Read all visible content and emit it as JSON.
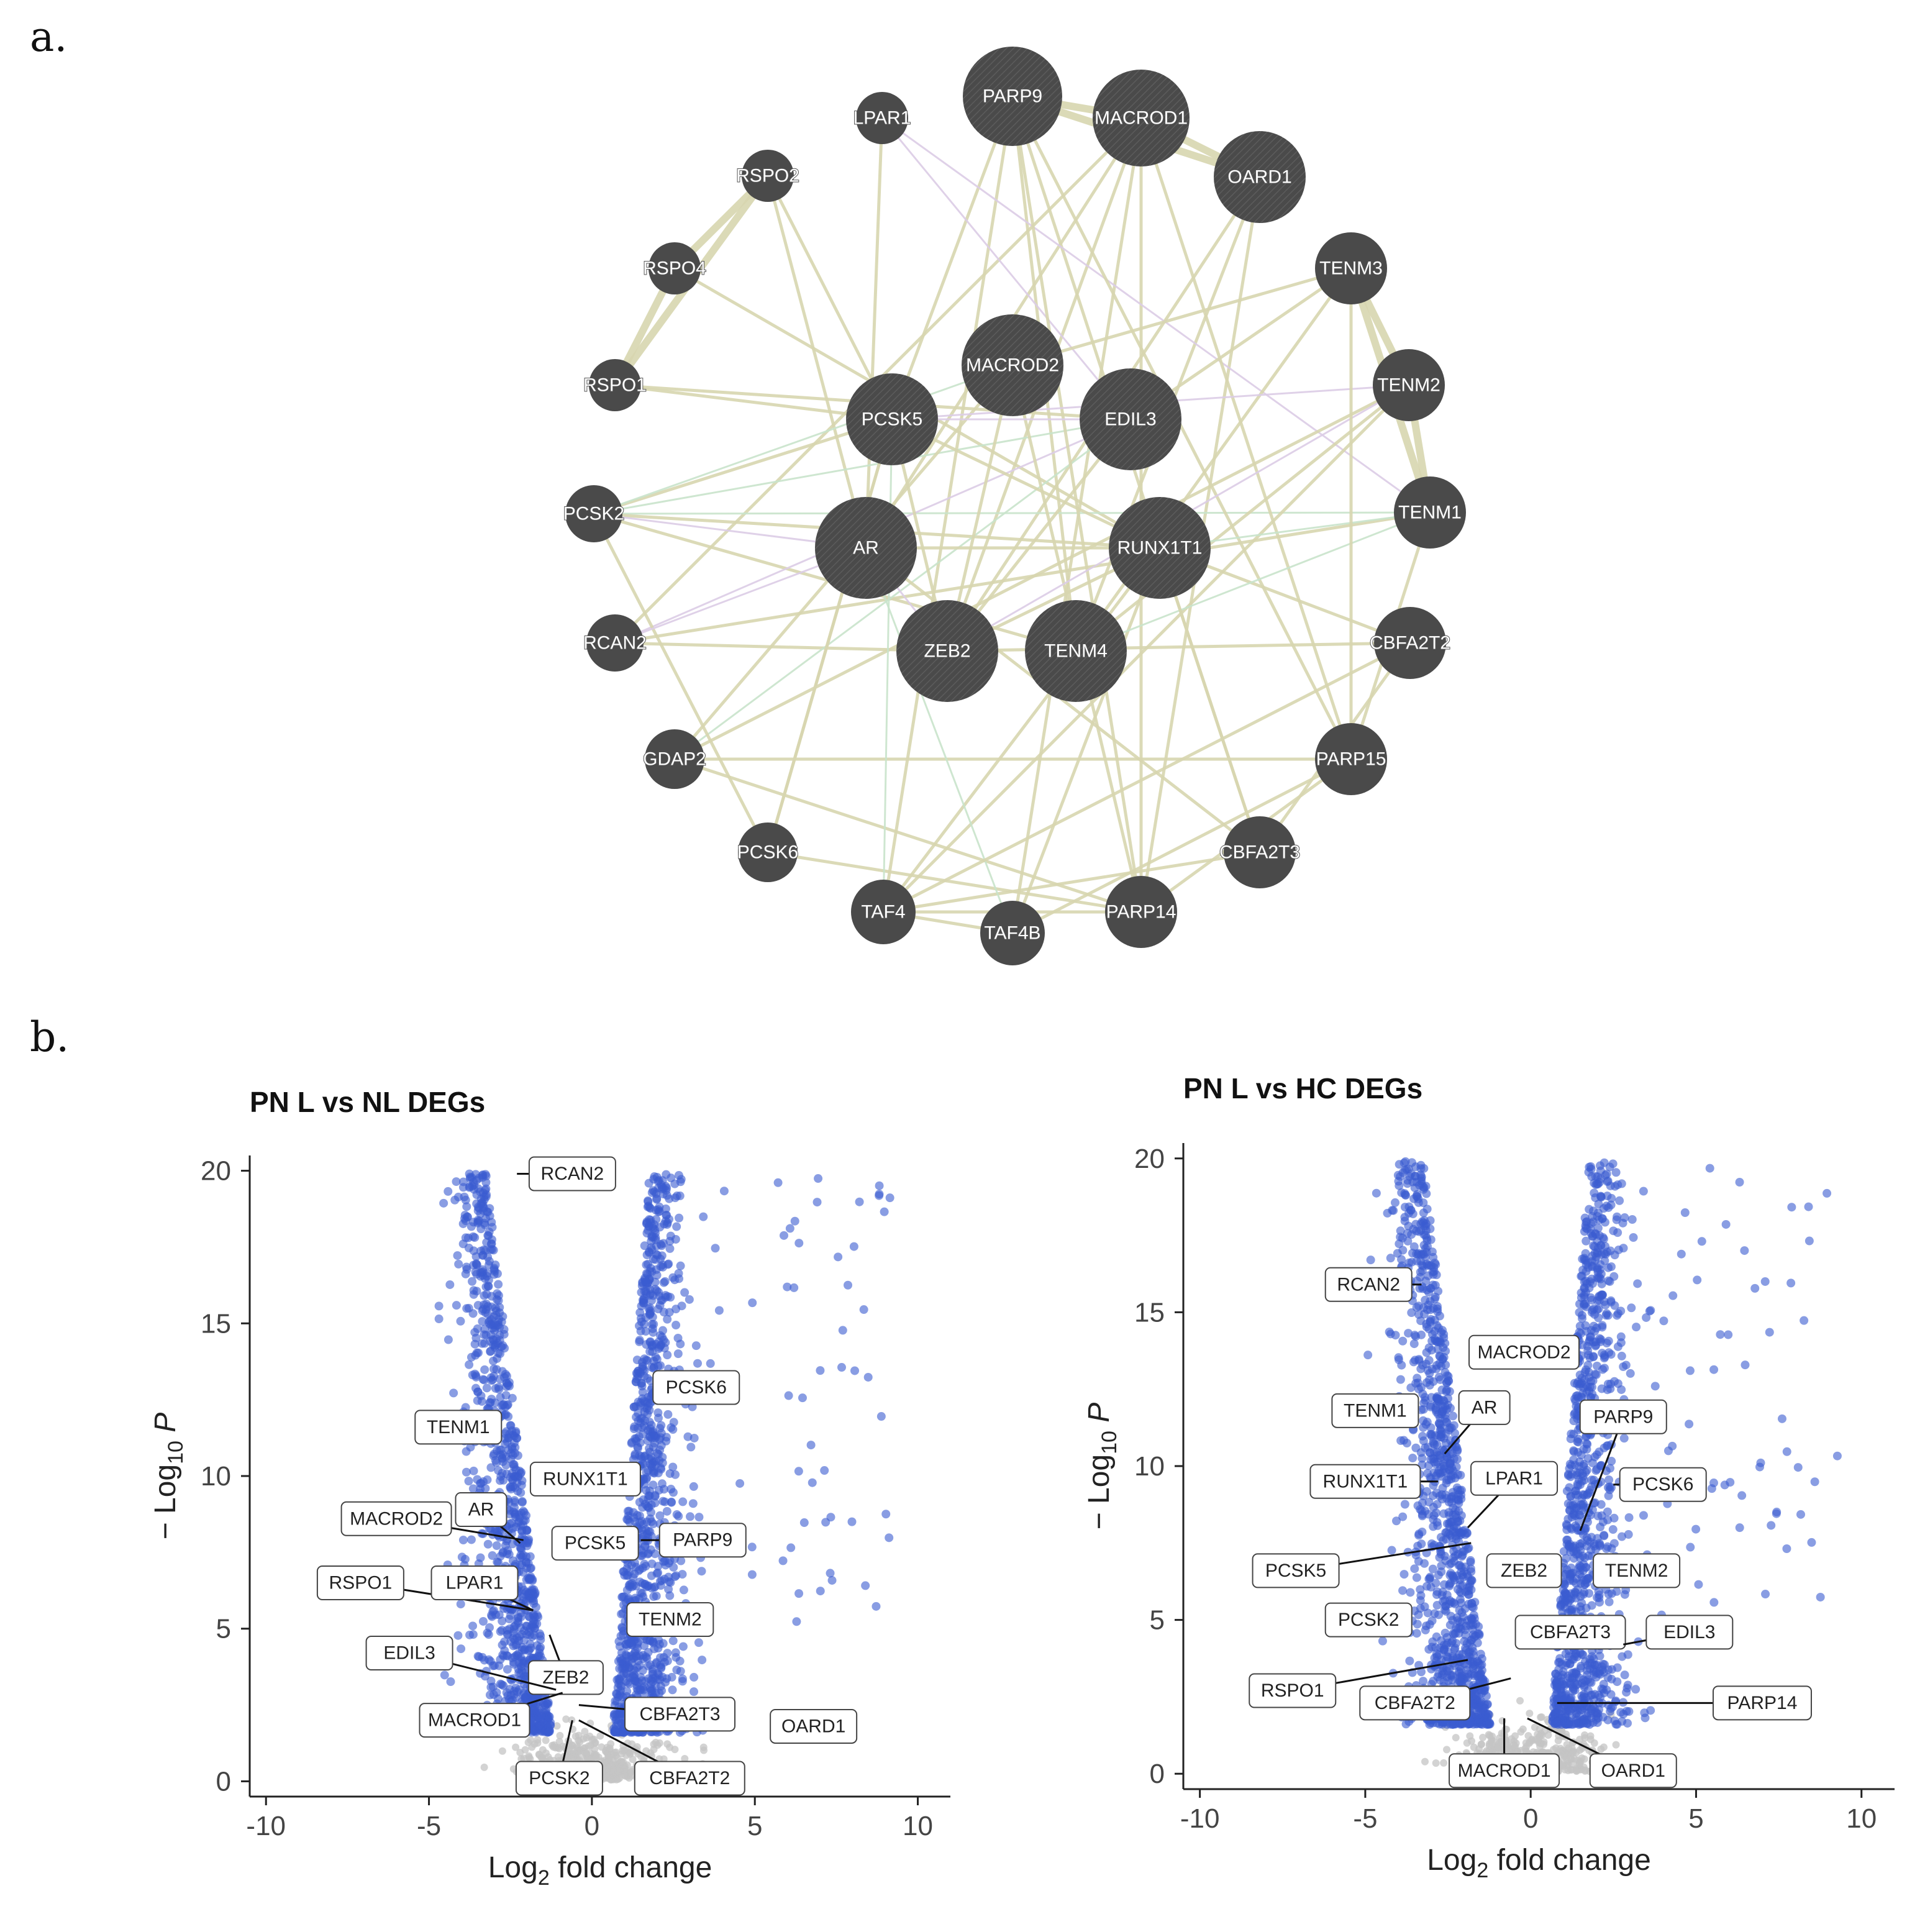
{
  "panel_labels": [
    "a.",
    "b."
  ],
  "colors": {
    "node": "#4a4a4a",
    "edge_coexpression": "#d8d6b0",
    "edge_physical": "#dccde6",
    "edge_genetic": "#c9e4cc",
    "significant_point": "#3a5bd0",
    "nonsignificant_point": "#c4c4c4"
  },
  "network": {
    "nodes": [
      {
        "id": "PARP9",
        "type": "query"
      },
      {
        "id": "MACROD1",
        "type": "query"
      },
      {
        "id": "OARD1",
        "type": "query"
      },
      {
        "id": "LPAR1",
        "type": "related"
      },
      {
        "id": "RSPO2",
        "type": "related"
      },
      {
        "id": "RSPO4",
        "type": "related"
      },
      {
        "id": "RSPO1",
        "type": "related"
      },
      {
        "id": "TENM3",
        "type": "related"
      },
      {
        "id": "TENM2",
        "type": "related"
      },
      {
        "id": "TENM1",
        "type": "related"
      },
      {
        "id": "PCSK2",
        "type": "related"
      },
      {
        "id": "RCAN2",
        "type": "related"
      },
      {
        "id": "CBFA2T2",
        "type": "related"
      },
      {
        "id": "GDAP2",
        "type": "related"
      },
      {
        "id": "PARP15",
        "type": "related"
      },
      {
        "id": "PCSK6",
        "type": "related"
      },
      {
        "id": "CBFA2T3",
        "type": "related"
      },
      {
        "id": "TAF4",
        "type": "related"
      },
      {
        "id": "TAF4B",
        "type": "related"
      },
      {
        "id": "PARP14",
        "type": "related"
      },
      {
        "id": "MACROD2",
        "type": "query"
      },
      {
        "id": "PCSK5",
        "type": "query"
      },
      {
        "id": "EDIL3",
        "type": "query"
      },
      {
        "id": "AR",
        "type": "query"
      },
      {
        "id": "RUNX1T1",
        "type": "query"
      },
      {
        "id": "ZEB2",
        "type": "query"
      },
      {
        "id": "TENM4",
        "type": "query"
      }
    ],
    "edges": [
      [
        "RSPO2",
        "RSPO1",
        "co"
      ],
      [
        "RSPO2",
        "RSPO4",
        "co"
      ],
      [
        "RSPO4",
        "RSPO1",
        "co"
      ],
      [
        "TENM3",
        "TENM2",
        "co"
      ],
      [
        "TENM2",
        "TENM1",
        "co"
      ],
      [
        "TENM3",
        "TENM1",
        "co"
      ],
      [
        "PARP9",
        "MACROD1",
        "co"
      ],
      [
        "MACROD1",
        "OARD1",
        "co"
      ],
      [
        "PARP9",
        "OARD1",
        "co"
      ],
      [
        "PARP9",
        "PCSK5",
        "co"
      ],
      [
        "PARP9",
        "TENM4",
        "co"
      ],
      [
        "PARP9",
        "RUNX1T1",
        "co"
      ],
      [
        "PARP9",
        "TAF4",
        "co"
      ],
      [
        "MACROD1",
        "ZEB2",
        "co"
      ],
      [
        "MACROD1",
        "AR",
        "co"
      ],
      [
        "MACROD1",
        "PARP14",
        "co"
      ],
      [
        "MACROD1",
        "TAF4B",
        "co"
      ],
      [
        "MACROD1",
        "RCAN2",
        "co"
      ],
      [
        "OARD1",
        "ZEB2",
        "co"
      ],
      [
        "OARD1",
        "PARP14",
        "co"
      ],
      [
        "OARD1",
        "TENM4",
        "co"
      ],
      [
        "LPAR1",
        "EDIL3",
        "phys"
      ],
      [
        "LPAR1",
        "AR",
        "co"
      ],
      [
        "LPAR1",
        "TENM1",
        "phys"
      ],
      [
        "RSPO2",
        "AR",
        "co"
      ],
      [
        "RSPO2",
        "PCSK5",
        "co"
      ],
      [
        "RSPO4",
        "RUNX1T1",
        "co"
      ],
      [
        "RSPO1",
        "PCSK5",
        "co"
      ],
      [
        "RSPO1",
        "EDIL3",
        "co"
      ],
      [
        "PCSK2",
        "TENM1",
        "gen"
      ],
      [
        "PCSK2",
        "RUNX1T1",
        "co"
      ],
      [
        "PCSK2",
        "PCSK5",
        "co"
      ],
      [
        "PCSK2",
        "TENM4",
        "co"
      ],
      [
        "PCSK2",
        "EDIL3",
        "gen"
      ],
      [
        "RCAN2",
        "ZEB2",
        "co"
      ],
      [
        "RCAN2",
        "EDIL3",
        "phys"
      ],
      [
        "RCAN2",
        "TENM1",
        "co"
      ],
      [
        "GDAP2",
        "PARP15",
        "co"
      ],
      [
        "GDAP2",
        "TENM2",
        "co"
      ],
      [
        "GDAP2",
        "MACROD2",
        "co"
      ],
      [
        "GDAP2",
        "EDIL3",
        "gen"
      ],
      [
        "GDAP2",
        "PARP14",
        "co"
      ],
      [
        "PCSK6",
        "PCSK2",
        "co"
      ],
      [
        "PCSK6",
        "PCSK5",
        "co"
      ],
      [
        "PCSK6",
        "PARP14",
        "co"
      ],
      [
        "TAF4",
        "TAF4B",
        "co"
      ],
      [
        "TAF4",
        "PARP14",
        "co"
      ],
      [
        "TAF4",
        "TENM2",
        "co"
      ],
      [
        "TAF4",
        "CBFA2T3",
        "co"
      ],
      [
        "TAF4",
        "RUNX1T1",
        "co"
      ],
      [
        "TAF4B",
        "PARP15",
        "co"
      ],
      [
        "TAF4B",
        "RUNX1T1",
        "co"
      ],
      [
        "TAF4B",
        "AR",
        "gen"
      ],
      [
        "PARP14",
        "PARP15",
        "co"
      ],
      [
        "PARP14",
        "PARP9",
        "co"
      ],
      [
        "PARP14",
        "MACROD2",
        "co"
      ],
      [
        "CBFA2T2",
        "CBFA2T3",
        "co"
      ],
      [
        "CBFA2T2",
        "RUNX1T1",
        "co"
      ],
      [
        "CBFA2T2",
        "ZEB2",
        "co"
      ],
      [
        "CBFA2T2",
        "TAF4",
        "co"
      ],
      [
        "CBFA2T3",
        "RUNX1T1",
        "co"
      ],
      [
        "CBFA2T3",
        "AR",
        "co"
      ],
      [
        "PARP15",
        "PARP9",
        "co"
      ],
      [
        "PARP15",
        "MACROD1",
        "co"
      ],
      [
        "TENM4",
        "TENM2",
        "co"
      ],
      [
        "TENM4",
        "TENM3",
        "co"
      ],
      [
        "TENM4",
        "TENM1",
        "gen"
      ],
      [
        "AR",
        "RUNX1T1",
        "co"
      ],
      [
        "AR",
        "ZEB2",
        "phys"
      ],
      [
        "AR",
        "PCSK2",
        "phys"
      ],
      [
        "AR",
        "RCAN2",
        "phys"
      ],
      [
        "ZEB2",
        "RUNX1T1",
        "co"
      ],
      [
        "ZEB2",
        "TENM2",
        "phys"
      ],
      [
        "ZEB2",
        "PCSK5",
        "co"
      ],
      [
        "EDIL3",
        "TENM3",
        "co"
      ],
      [
        "EDIL3",
        "PCSK5",
        "phys"
      ],
      [
        "EDIL3",
        "ZEB2",
        "co"
      ],
      [
        "MACROD2",
        "TENM3",
        "co"
      ],
      [
        "MACROD2",
        "PCSK2",
        "gen"
      ],
      [
        "MACROD2",
        "ZEB2",
        "co"
      ],
      [
        "RUNX1T1",
        "TENM1",
        "gen"
      ],
      [
        "RUNX1T1",
        "CBFA2T3",
        "co"
      ],
      [
        "PCSK5",
        "TENM2",
        "phys"
      ],
      [
        "PCSK5",
        "RUNX1T1",
        "co"
      ],
      [
        "PCSK5",
        "TAF4",
        "gen"
      ],
      [
        "PCSK5",
        "PCSK6",
        "co"
      ],
      [
        "TENM1",
        "PARP15",
        "co"
      ],
      [
        "TENM3",
        "PARP15",
        "co"
      ]
    ]
  },
  "chart_data": [
    {
      "type": "scatter",
      "title": "PN L vs NL DEGs",
      "xlabel_main": "Log",
      "xlabel_sub": "2",
      "xlabel_rest": " fold change",
      "ylabel_prefix": "− Log",
      "ylabel_sub": "10",
      "ylabel_var": "P",
      "xlim": [
        -10.5,
        11
      ],
      "ylim": [
        -0.5,
        20.5
      ],
      "xticks": [
        -10,
        -5,
        0,
        5,
        10
      ],
      "xtick_labels": [
        "-10",
        "-5",
        "0",
        "5",
        "10"
      ],
      "yticks": [
        0,
        5,
        10,
        15,
        20
      ],
      "ytick_labels": [
        "0",
        "5",
        "10",
        "15",
        "20"
      ],
      "labeled_genes": [
        {
          "gene": "RCAN2",
          "x": -2.3,
          "y": 19.9,
          "lx": -0.6,
          "ly": 19.9
        },
        {
          "gene": "PCSK6",
          "x": 2.8,
          "y": 12.9,
          "lx": 3.2,
          "ly": 12.9
        },
        {
          "gene": "TENM1",
          "x": -2.9,
          "y": 11.6,
          "lx": -4.1,
          "ly": 11.6
        },
        {
          "gene": "RUNX1T1",
          "x": -0.6,
          "y": 9.9,
          "lx": -0.2,
          "ly": 9.9
        },
        {
          "gene": "AR",
          "x": -2.2,
          "y": 7.8,
          "lx": -3.4,
          "ly": 8.9
        },
        {
          "gene": "MACROD2",
          "x": -2.1,
          "y": 7.9,
          "lx": -6.0,
          "ly": 8.6
        },
        {
          "gene": "PCSK5",
          "x": 1.3,
          "y": 7.8,
          "lx": 0.1,
          "ly": 7.8
        },
        {
          "gene": "PARP9",
          "x": 1.5,
          "y": 7.9,
          "lx": 3.4,
          "ly": 7.9
        },
        {
          "gene": "RSPO1",
          "x": -1.8,
          "y": 5.6,
          "lx": -7.1,
          "ly": 6.5
        },
        {
          "gene": "LPAR1",
          "x": -1.8,
          "y": 5.6,
          "lx": -3.6,
          "ly": 6.5
        },
        {
          "gene": "TENM2",
          "x": 2.5,
          "y": 5.3,
          "lx": 2.4,
          "ly": 5.3
        },
        {
          "gene": "ZEB2",
          "x": -1.3,
          "y": 4.8,
          "lx": -0.8,
          "ly": 3.4
        },
        {
          "gene": "EDIL3",
          "x": -1.1,
          "y": 3.0,
          "lx": -5.6,
          "ly": 4.2
        },
        {
          "gene": "MACROD1",
          "x": -0.9,
          "y": 2.9,
          "lx": -3.6,
          "ly": 2.0
        },
        {
          "gene": "CBFA2T3",
          "x": -0.4,
          "y": 2.5,
          "lx": 2.7,
          "ly": 2.2
        },
        {
          "gene": "OARD1",
          "x": 5.8,
          "y": 1.8,
          "lx": 6.8,
          "ly": 1.8
        },
        {
          "gene": "PCSK2",
          "x": -0.6,
          "y": 2.0,
          "lx": -1.0,
          "ly": 0.1
        },
        {
          "gene": "CBFA2T2",
          "x": -0.4,
          "y": 2.0,
          "lx": 3.0,
          "ly": 0.1
        }
      ]
    },
    {
      "type": "scatter",
      "title": "PN L vs HC DEGs",
      "xlabel_main": "Log",
      "xlabel_sub": "2",
      "xlabel_rest": " fold change",
      "ylabel_prefix": "− Log",
      "ylabel_sub": "10",
      "ylabel_var": "P",
      "xlim": [
        -10.5,
        11
      ],
      "ylim": [
        -0.5,
        20.5
      ],
      "xticks": [
        -10,
        -5,
        0,
        5,
        10
      ],
      "xtick_labels": [
        "-10",
        "-5",
        "0",
        "5",
        "10"
      ],
      "yticks": [
        0,
        5,
        10,
        15,
        20
      ],
      "ytick_labels": [
        "0",
        "5",
        "10",
        "15",
        "20"
      ],
      "labeled_genes": [
        {
          "gene": "RCAN2",
          "x": -3.3,
          "y": 15.9,
          "lx": -4.9,
          "ly": 15.9
        },
        {
          "gene": "MACROD2",
          "x": -1.5,
          "y": 13.7,
          "lx": -0.2,
          "ly": 13.7
        },
        {
          "gene": "TENM1",
          "x": -3.7,
          "y": 11.8,
          "lx": -4.7,
          "ly": 11.8
        },
        {
          "gene": "AR",
          "x": -2.6,
          "y": 10.4,
          "lx": -1.4,
          "ly": 11.9
        },
        {
          "gene": "PARP9",
          "x": 1.5,
          "y": 7.9,
          "lx": 2.8,
          "ly": 11.6
        },
        {
          "gene": "RUNX1T1",
          "x": -2.8,
          "y": 9.5,
          "lx": -5.0,
          "ly": 9.5
        },
        {
          "gene": "LPAR1",
          "x": -1.9,
          "y": 8.0,
          "lx": -0.5,
          "ly": 9.6
        },
        {
          "gene": "PCSK6",
          "x": 2.5,
          "y": 9.4,
          "lx": 4.0,
          "ly": 9.4
        },
        {
          "gene": "PCSK5",
          "x": -1.8,
          "y": 7.5,
          "lx": -7.1,
          "ly": 6.6
        },
        {
          "gene": "ZEB2",
          "x": -0.2,
          "y": 6.6,
          "lx": -0.2,
          "ly": 6.6
        },
        {
          "gene": "TENM2",
          "x": 3.2,
          "y": 6.6,
          "lx": 3.2,
          "ly": 6.6
        },
        {
          "gene": "PCSK2",
          "x": -4.9,
          "y": 5.0,
          "lx": -4.9,
          "ly": 5.0
        },
        {
          "gene": "CBFA2T3",
          "x": 0.2,
          "y": 4.6,
          "lx": 1.2,
          "ly": 4.6
        },
        {
          "gene": "EDIL3",
          "x": 2.8,
          "y": 4.2,
          "lx": 4.8,
          "ly": 4.6
        },
        {
          "gene": "RSPO1",
          "x": -1.9,
          "y": 3.7,
          "lx": -7.2,
          "ly": 2.7
        },
        {
          "gene": "CBFA2T2",
          "x": -0.6,
          "y": 3.1,
          "lx": -3.5,
          "ly": 2.3
        },
        {
          "gene": "PARP14",
          "x": 0.8,
          "y": 2.3,
          "lx": 7.0,
          "ly": 2.3
        },
        {
          "gene": "MACROD1",
          "x": -0.8,
          "y": 1.8,
          "lx": -0.8,
          "ly": 0.1
        },
        {
          "gene": "OARD1",
          "x": -0.1,
          "y": 1.8,
          "lx": 3.1,
          "ly": 0.1
        }
      ]
    }
  ]
}
